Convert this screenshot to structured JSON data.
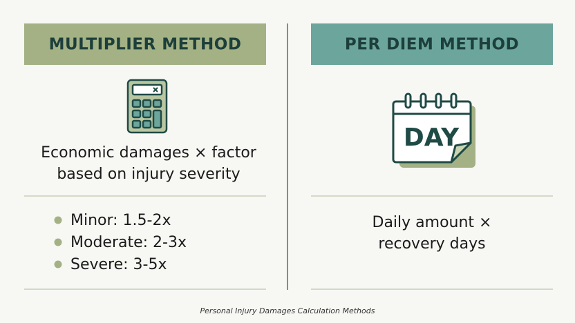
{
  "left": {
    "title": "MULTIPLIER METHOD",
    "description": [
      "Economic damages × factor",
      "based on injury severity"
    ],
    "items": [
      "Minor: 1.5-2x",
      "Moderate: 2-3x",
      "Severe: 3-5x"
    ]
  },
  "right": {
    "title": "PER DIEM METHOD",
    "icon_text": "DAY",
    "description": [
      "Daily amount ×",
      "recovery days"
    ]
  },
  "caption": "Personal Injury Damages Calculation Methods"
}
